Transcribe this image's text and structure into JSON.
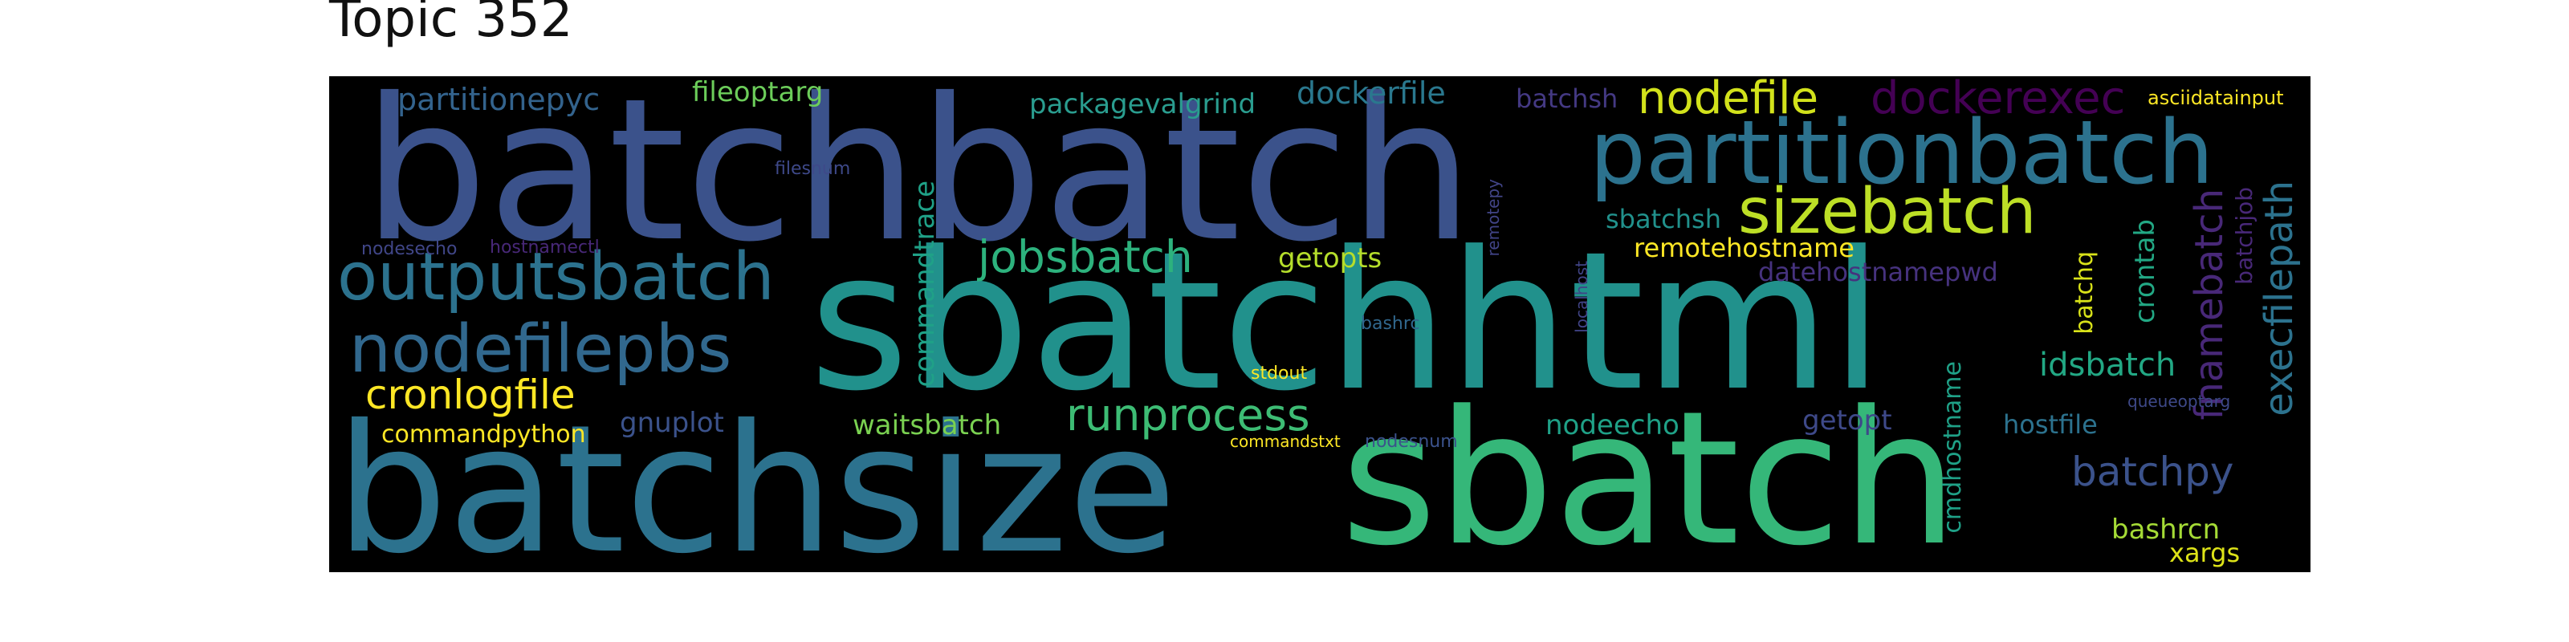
{
  "title": "Topic 352",
  "words": [
    {
      "text": "batchbatch",
      "color": "#3b528b"
    },
    {
      "text": "sbatchhtml",
      "color": "#21918c"
    },
    {
      "text": "batchsize",
      "color": "#2c728e"
    },
    {
      "text": "sbatch",
      "color": "#35b779"
    },
    {
      "text": "partitionbatch",
      "color": "#2c728e"
    },
    {
      "text": "outputsbatch",
      "color": "#2c728e"
    },
    {
      "text": "nodefilepbs",
      "color": "#31688e"
    },
    {
      "text": "sizebatch",
      "color": "#bddf26"
    },
    {
      "text": "nodefile",
      "color": "#d2e21b"
    },
    {
      "text": "dockerexec",
      "color": "#440154"
    },
    {
      "text": "runprocess",
      "color": "#3dbc74"
    },
    {
      "text": "jobsbatch",
      "color": "#2db27d"
    },
    {
      "text": "cronlogfile",
      "color": "#fde725"
    },
    {
      "text": "execfilepath",
      "color": "#2c728e"
    },
    {
      "text": "fnamebatch",
      "color": "#482878"
    },
    {
      "text": "batchpy",
      "color": "#3b528b"
    },
    {
      "text": "partitionepyc",
      "color": "#33638d"
    },
    {
      "text": "dockerfile",
      "color": "#2a788e"
    },
    {
      "text": "packagevalgrind",
      "color": "#2a9d8f"
    },
    {
      "text": "fileoptarg",
      "color": "#6ccd5a"
    },
    {
      "text": "idsbatch",
      "color": "#22a884"
    },
    {
      "text": "commandtrace",
      "color": "#1fa187"
    },
    {
      "text": "remotehostname",
      "color": "#fde725"
    },
    {
      "text": "getopts",
      "color": "#b5de2b"
    },
    {
      "text": "datehostnamepwd",
      "color": "#46327e"
    },
    {
      "text": "sbatchsh",
      "color": "#21918c"
    },
    {
      "text": "batchsh",
      "color": "#443983"
    },
    {
      "text": "waitsbatch",
      "color": "#7ad151"
    },
    {
      "text": "commandpython",
      "color": "#fde725"
    },
    {
      "text": "gnuplot",
      "color": "#3b528b"
    },
    {
      "text": "nodeecho",
      "color": "#1fa187"
    },
    {
      "text": "getopt",
      "color": "#3e4989"
    },
    {
      "text": "hostfile",
      "color": "#2c728e"
    },
    {
      "text": "bashrcn",
      "color": "#a5db36"
    },
    {
      "text": "xargs",
      "color": "#dde318"
    },
    {
      "text": "crontab",
      "color": "#22a884"
    },
    {
      "text": "batchq",
      "color": "#d8e219"
    },
    {
      "text": "batchjob",
      "color": "#482878"
    },
    {
      "text": "cmdhostname",
      "color": "#1fa187"
    },
    {
      "text": "asciidatainput",
      "color": "#fde725"
    },
    {
      "text": "filesnum",
      "color": "#3e4989"
    },
    {
      "text": "nodesecho",
      "color": "#404688"
    },
    {
      "text": "hostnamectl",
      "color": "#482878"
    },
    {
      "text": "remotepy",
      "color": "#414487"
    },
    {
      "text": "localhost",
      "color": "#414487"
    },
    {
      "text": "bashrc",
      "color": "#31688e"
    },
    {
      "text": "stdout",
      "color": "#fde725"
    },
    {
      "text": "commandstxt",
      "color": "#fde725"
    },
    {
      "text": "nodesnum",
      "color": "#3b528b"
    },
    {
      "text": "queueoptarg",
      "color": "#3e4989"
    }
  ]
}
